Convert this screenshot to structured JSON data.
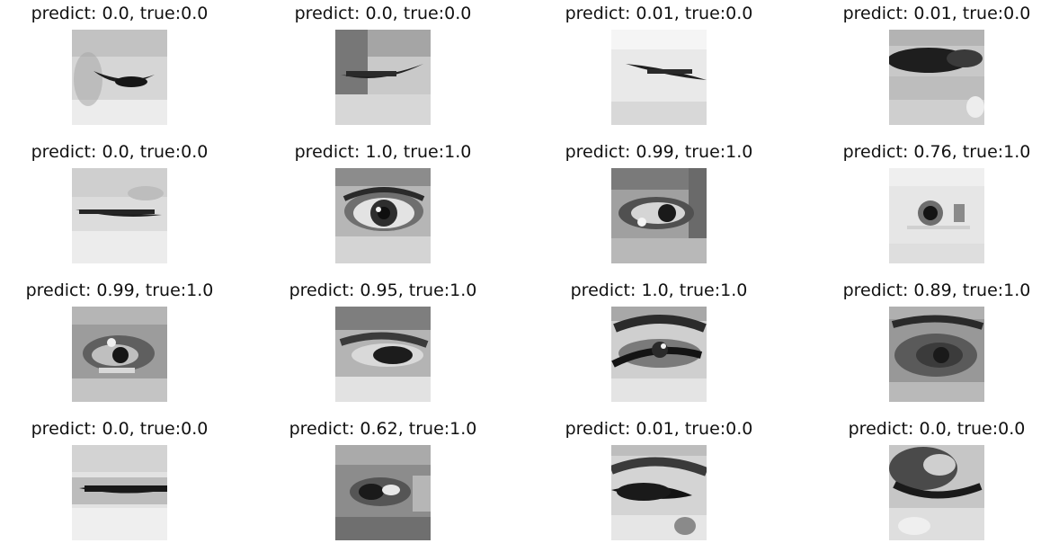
{
  "figure": {
    "panels": [
      {
        "title": "predict: 0.0, true:0.0",
        "label": "closed"
      },
      {
        "title": "predict: 0.0, true:0.0",
        "label": "closed"
      },
      {
        "title": "predict: 0.01, true:0.0",
        "label": "closed"
      },
      {
        "title": "predict: 0.01, true:0.0",
        "label": "closed"
      },
      {
        "title": "predict: 0.0, true:0.0",
        "label": "closed"
      },
      {
        "title": "predict: 1.0, true:1.0",
        "label": "open"
      },
      {
        "title": "predict: 0.99, true:1.0",
        "label": "open"
      },
      {
        "title": "predict: 0.76, true:1.0",
        "label": "open"
      },
      {
        "title": "predict: 0.99, true:1.0",
        "label": "open"
      },
      {
        "title": "predict: 0.95, true:1.0",
        "label": "open"
      },
      {
        "title": "predict: 1.0, true:1.0",
        "label": "open"
      },
      {
        "title": "predict: 0.89, true:1.0",
        "label": "open"
      },
      {
        "title": "predict: 0.0, true:0.0",
        "label": "closed"
      },
      {
        "title": "predict: 0.62, true:1.0",
        "label": "open"
      },
      {
        "title": "predict: 0.01, true:0.0",
        "label": "closed"
      },
      {
        "title": "predict: 0.0, true:0.0",
        "label": "closed"
      }
    ]
  }
}
